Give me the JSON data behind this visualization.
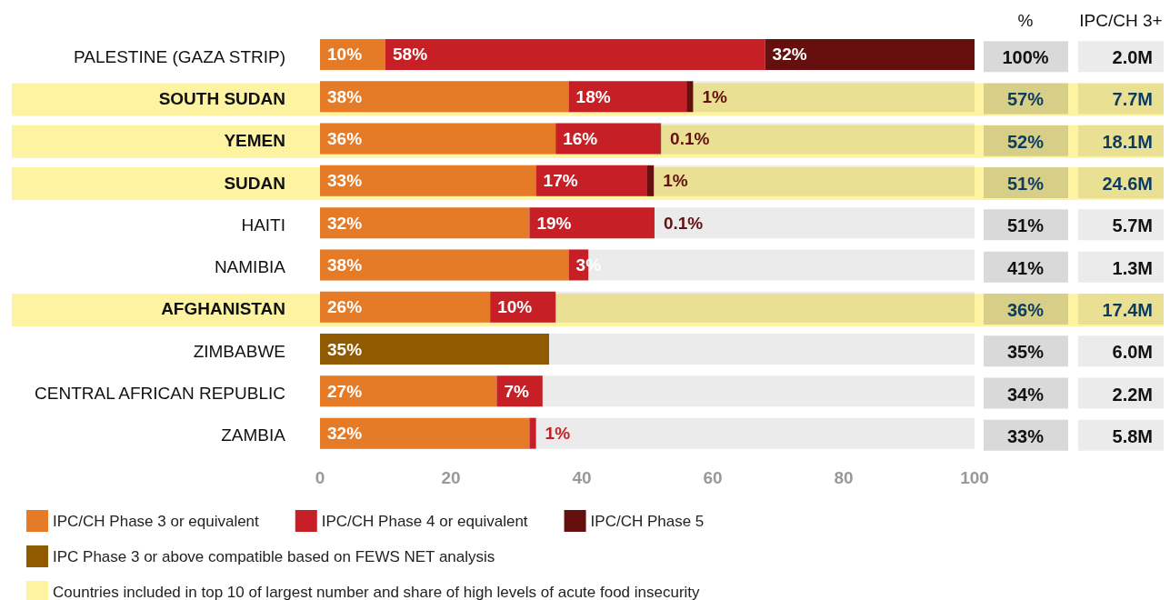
{
  "chart_data": {
    "type": "bar",
    "orientation": "horizontal",
    "stacked": true,
    "categories": [
      "PALESTINE (GAZA STRIP)",
      "SOUTH SUDAN",
      "YEMEN",
      "SUDAN",
      "HAITI",
      "NAMIBIA",
      "AFGHANISTAN",
      "ZIMBABWE",
      "CENTRAL AFRICAN REPUBLIC",
      "ZAMBIA"
    ],
    "series": [
      {
        "name": "IPC/CH Phase 3 or equivalent",
        "color": "#e57a27",
        "values": [
          10,
          38,
          36,
          33,
          32,
          38,
          26,
          null,
          27,
          32
        ],
        "value_labels": [
          "10%",
          "38%",
          "36%",
          "33%",
          "32%",
          "38%",
          "26%",
          null,
          "27%",
          "32%"
        ]
      },
      {
        "name": "IPC/CH Phase 4 or equivalent",
        "color": "#c62026",
        "values": [
          58,
          18,
          16,
          17,
          19,
          3,
          10,
          null,
          7,
          1
        ],
        "value_labels": [
          "58%",
          "18%",
          "16%",
          "17%",
          "19%",
          "3%",
          "10%",
          null,
          "7%",
          "1%"
        ]
      },
      {
        "name": "IPC/CH Phase 5",
        "color": "#65100f",
        "values": [
          32,
          1,
          0.1,
          1,
          0.1,
          null,
          null,
          null,
          null,
          null
        ],
        "value_labels": [
          "32%",
          "1%",
          "0.1%",
          "1%",
          "0.1%",
          null,
          null,
          null,
          null,
          null
        ]
      },
      {
        "name": "IPC Phase 3 or above compatible based on FEWS NET analysis",
        "color": "#8f5a00",
        "values": [
          null,
          null,
          null,
          null,
          null,
          null,
          null,
          35,
          null,
          null
        ],
        "value_labels": [
          null,
          null,
          null,
          null,
          null,
          null,
          null,
          "35%",
          null,
          null
        ]
      }
    ],
    "xlim": [
      0,
      100
    ],
    "xticks": [
      0,
      20,
      40,
      60,
      80,
      100
    ],
    "grid": false,
    "legend": "bottom left",
    "bands": [
      {
        "axis": "y",
        "from": "SOUTH SUDAN",
        "to": "SOUTH SUDAN",
        "label": "Countries included in top 10 of largest number and share of high levels of acute food insecurity",
        "color": "#fdf3a0"
      },
      {
        "axis": "y",
        "from": "YEMEN",
        "to": "YEMEN",
        "color": "#fdf3a0"
      },
      {
        "axis": "y",
        "from": "SUDAN",
        "to": "SUDAN",
        "color": "#fdf3a0"
      },
      {
        "axis": "y",
        "from": "AFGHANISTAN",
        "to": "AFGHANISTAN",
        "color": "#fdf3a0"
      }
    ],
    "annotations": [
      "%",
      "IPC/CH 3+",
      "100%",
      "2.0M",
      "57%",
      "7.7M",
      "52%",
      "18.1M",
      "51%",
      "24.6M",
      "51%",
      "5.7M",
      "41%",
      "1.3M",
      "36%",
      "17.4M",
      "35%",
      "6.0M",
      "34%",
      "2.2M",
      "33%",
      "5.8M"
    ]
  }
}
